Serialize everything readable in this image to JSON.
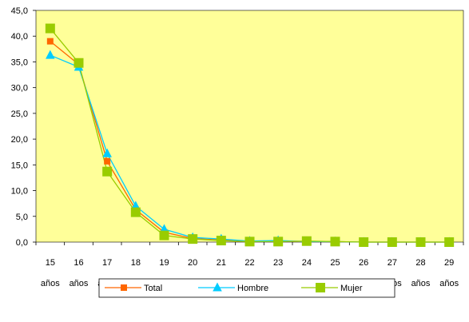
{
  "chart_data": {
    "type": "line",
    "categories": [
      [
        "15",
        "años"
      ],
      [
        "16",
        "años"
      ],
      [
        "17",
        "años"
      ],
      [
        "18",
        "años"
      ],
      [
        "19",
        "años"
      ],
      [
        "20",
        "años"
      ],
      [
        "21",
        "años"
      ],
      [
        "22",
        "años"
      ],
      [
        "23",
        "años"
      ],
      [
        "24",
        "años"
      ],
      [
        "25",
        "años"
      ],
      [
        "26",
        "años"
      ],
      [
        "27",
        "años"
      ],
      [
        "28",
        "años"
      ],
      [
        "29",
        "años"
      ]
    ],
    "y_ticks": [
      "0,0",
      "5,0",
      "10,0",
      "15,0",
      "20,0",
      "25,0",
      "30,0",
      "35,0",
      "40,0",
      "45,0"
    ],
    "ylim": [
      0,
      45
    ],
    "grid": false,
    "legend_position": "bottom",
    "plot_background": "#ffff99",
    "series": [
      {
        "name": "Total",
        "color": "#ff6600",
        "marker": "square",
        "values": [
          39.0,
          34.5,
          15.7,
          6.3,
          1.9,
          0.7,
          0.4,
          0.1,
          0.2,
          0.1,
          0.1,
          0.0,
          0.0,
          0.0,
          0.0
        ]
      },
      {
        "name": "Hombre",
        "color": "#00ccff",
        "marker": "triangle",
        "values": [
          36.3,
          34.0,
          17.2,
          7.0,
          2.5,
          0.9,
          0.6,
          0.2,
          0.3,
          0.1,
          0.1,
          0.0,
          0.0,
          0.0,
          0.0
        ]
      },
      {
        "name": "Mujer",
        "color": "#99cc00",
        "marker": "square",
        "values": [
          41.5,
          34.8,
          13.7,
          5.8,
          1.3,
          0.6,
          0.3,
          0.1,
          0.1,
          0.2,
          0.1,
          0.0,
          0.0,
          0.0,
          0.0
        ]
      }
    ]
  }
}
